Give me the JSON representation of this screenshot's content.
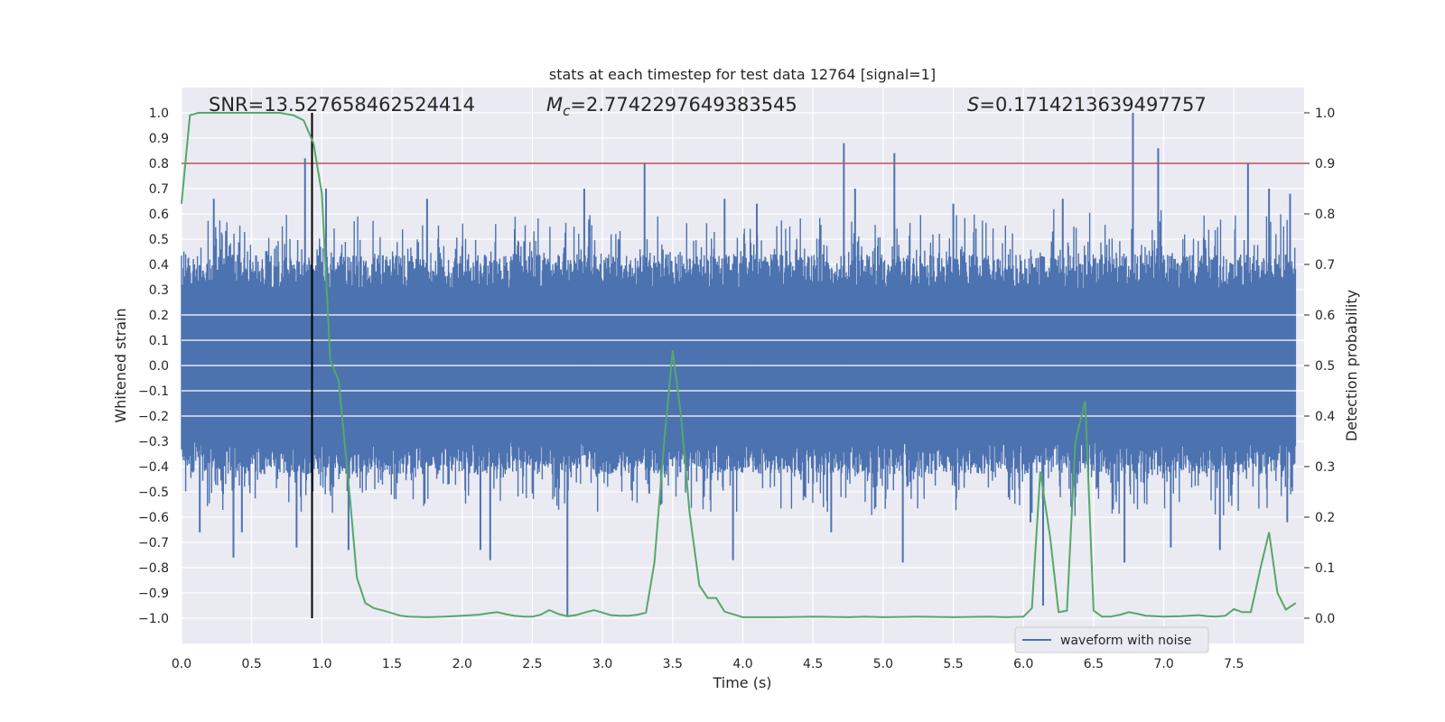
{
  "chart_data": {
    "type": "line",
    "title": "stats at each timestep for test data 12764 [signal=1]",
    "xlabel": "Time (s)",
    "ylabel": "Whitened strain",
    "y2label": "Detection probability",
    "xlim": [
      0.0,
      8.0
    ],
    "ylim": [
      -1.1,
      1.1
    ],
    "y2lim": [
      -0.05,
      1.05
    ],
    "grid": true,
    "x_ticks": [
      0.0,
      0.5,
      1.0,
      1.5,
      2.0,
      2.5,
      3.0,
      3.5,
      4.0,
      4.5,
      5.0,
      5.5,
      6.0,
      6.5,
      7.0,
      7.5
    ],
    "x_tick_labels": [
      "0.0",
      "0.5",
      "1.0",
      "1.5",
      "2.0",
      "2.5",
      "3.0",
      "3.5",
      "4.0",
      "4.5",
      "5.0",
      "5.5",
      "6.0",
      "6.5",
      "7.0",
      "7.5"
    ],
    "y_ticks": [
      1.0,
      0.9,
      0.8,
      0.7,
      0.6,
      0.5,
      0.4,
      0.3,
      0.2,
      0.1,
      0.0,
      -0.1,
      -0.2,
      -0.3,
      -0.4,
      -0.5,
      -0.6,
      -0.7,
      -0.8,
      -0.9,
      -1.0
    ],
    "y_tick_labels": [
      "1.0",
      "0.9",
      "0.8",
      "0.7",
      "0.6",
      "0.5",
      "0.4",
      "0.3",
      "0.2",
      "0.1",
      "0.0",
      "−0.1",
      "−0.2",
      "−0.3",
      "−0.4",
      "−0.5",
      "−0.6",
      "−0.7",
      "−0.8",
      "−0.9",
      "−1.0"
    ],
    "y2_ticks": [
      1.0,
      0.9,
      0.8,
      0.7,
      0.6,
      0.5,
      0.4,
      0.3,
      0.2,
      0.1,
      0.0
    ],
    "y2_tick_labels": [
      "1.0",
      "0.9",
      "0.8",
      "0.7",
      "0.6",
      "0.5",
      "0.4",
      "0.3",
      "0.2",
      "0.1",
      "0.0"
    ],
    "annotations": {
      "snr_label": "SNR=13.527658462524414",
      "mc_prefix": "M",
      "mc_subscript": "c",
      "mc_value": "=2.7742297649383545",
      "s_prefix": "S",
      "s_value": "=0.1714213639497757"
    },
    "threshold": {
      "axis": "y2",
      "value": 0.9,
      "color": "#c44e52"
    },
    "marker_line": {
      "x": 0.93,
      "y_from": -1.0,
      "y_to": 1.0,
      "color": "#000000"
    },
    "legend": {
      "placement": "lower-right",
      "label": "waveform with noise"
    },
    "series": [
      {
        "name": "waveform with noise",
        "axis": "y",
        "color": "#4c72b0",
        "style": "noise-band",
        "core_band": [
          -0.25,
          0.25
        ],
        "positive_peaks": [
          {
            "x": 0.88,
            "y": 0.82
          },
          {
            "x": 0.23,
            "y": 0.66
          },
          {
            "x": 1.03,
            "y": 0.7
          },
          {
            "x": 3.3,
            "y": 0.8
          },
          {
            "x": 4.72,
            "y": 0.88
          },
          {
            "x": 5.08,
            "y": 0.84
          },
          {
            "x": 6.78,
            "y": 1.0
          },
          {
            "x": 6.96,
            "y": 0.86
          },
          {
            "x": 7.6,
            "y": 0.8
          },
          {
            "x": 2.87,
            "y": 0.7
          },
          {
            "x": 4.8,
            "y": 0.7
          },
          {
            "x": 7.75,
            "y": 0.7
          },
          {
            "x": 1.75,
            "y": 0.66
          },
          {
            "x": 3.87,
            "y": 0.66
          },
          {
            "x": 4.1,
            "y": 0.64
          },
          {
            "x": 5.5,
            "y": 0.64
          },
          {
            "x": 6.28,
            "y": 0.66
          },
          {
            "x": 7.9,
            "y": 0.68
          }
        ],
        "negative_peaks": [
          {
            "x": 2.75,
            "y": -0.99
          },
          {
            "x": 6.14,
            "y": -0.95
          },
          {
            "x": 0.37,
            "y": -0.76
          },
          {
            "x": 2.2,
            "y": -0.77
          },
          {
            "x": 3.93,
            "y": -0.77
          },
          {
            "x": 5.14,
            "y": -0.78
          },
          {
            "x": 6.72,
            "y": -0.78
          },
          {
            "x": 7.4,
            "y": -0.73
          },
          {
            "x": 1.19,
            "y": -0.73
          },
          {
            "x": 0.82,
            "y": -0.72
          },
          {
            "x": 2.13,
            "y": -0.73
          },
          {
            "x": 7.05,
            "y": -0.72
          },
          {
            "x": 0.13,
            "y": -0.66
          },
          {
            "x": 0.43,
            "y": -0.66
          },
          {
            "x": 4.63,
            "y": -0.66
          },
          {
            "x": 6.05,
            "y": -0.62
          },
          {
            "x": 7.88,
            "y": -0.62
          }
        ]
      },
      {
        "name": "detection probability",
        "axis": "y2",
        "color": "#55a868",
        "x": [
          0.0,
          0.06,
          0.12,
          0.2,
          0.3,
          0.4,
          0.5,
          0.6,
          0.7,
          0.8,
          0.87,
          0.94,
          1.0,
          1.06,
          1.12,
          1.2,
          1.25,
          1.31,
          1.37,
          1.44,
          1.5,
          1.56,
          1.62,
          1.75,
          1.87,
          2.0,
          2.12,
          2.19,
          2.25,
          2.31,
          2.37,
          2.44,
          2.5,
          2.56,
          2.62,
          2.69,
          2.75,
          2.81,
          2.87,
          2.94,
          3.0,
          3.06,
          3.12,
          3.19,
          3.25,
          3.31,
          3.37,
          3.44,
          3.5,
          3.56,
          3.62,
          3.69,
          3.75,
          3.81,
          3.87,
          4.0,
          4.25,
          4.5,
          4.75,
          4.87,
          5.0,
          5.25,
          5.5,
          5.75,
          5.87,
          6.0,
          6.06,
          6.12,
          6.19,
          6.25,
          6.31,
          6.37,
          6.44,
          6.5,
          6.56,
          6.62,
          6.69,
          6.75,
          6.81,
          6.87,
          7.0,
          7.12,
          7.25,
          7.31,
          7.37,
          7.44,
          7.5,
          7.56,
          7.62,
          7.69,
          7.75,
          7.81,
          7.87,
          7.94
        ],
        "values": [
          0.82,
          0.995,
          1.0,
          1.0,
          1.0,
          1.0,
          1.0,
          1.0,
          1.0,
          0.995,
          0.985,
          0.94,
          0.84,
          0.51,
          0.47,
          0.24,
          0.08,
          0.03,
          0.02,
          0.015,
          0.01,
          0.005,
          0.003,
          0.002,
          0.003,
          0.005,
          0.007,
          0.01,
          0.012,
          0.008,
          0.005,
          0.003,
          0.003,
          0.007,
          0.016,
          0.008,
          0.004,
          0.006,
          0.011,
          0.016,
          0.011,
          0.006,
          0.005,
          0.005,
          0.007,
          0.011,
          0.11,
          0.35,
          0.53,
          0.4,
          0.21,
          0.065,
          0.04,
          0.04,
          0.013,
          0.002,
          0.002,
          0.003,
          0.002,
          0.003,
          0.002,
          0.003,
          0.002,
          0.003,
          0.002,
          0.003,
          0.02,
          0.29,
          0.16,
          0.012,
          0.015,
          0.35,
          0.43,
          0.015,
          0.003,
          0.003,
          0.007,
          0.012,
          0.009,
          0.005,
          0.003,
          0.004,
          0.006,
          0.004,
          0.003,
          0.005,
          0.018,
          0.012,
          0.012,
          0.1,
          0.17,
          0.05,
          0.017,
          0.03
        ]
      }
    ]
  }
}
